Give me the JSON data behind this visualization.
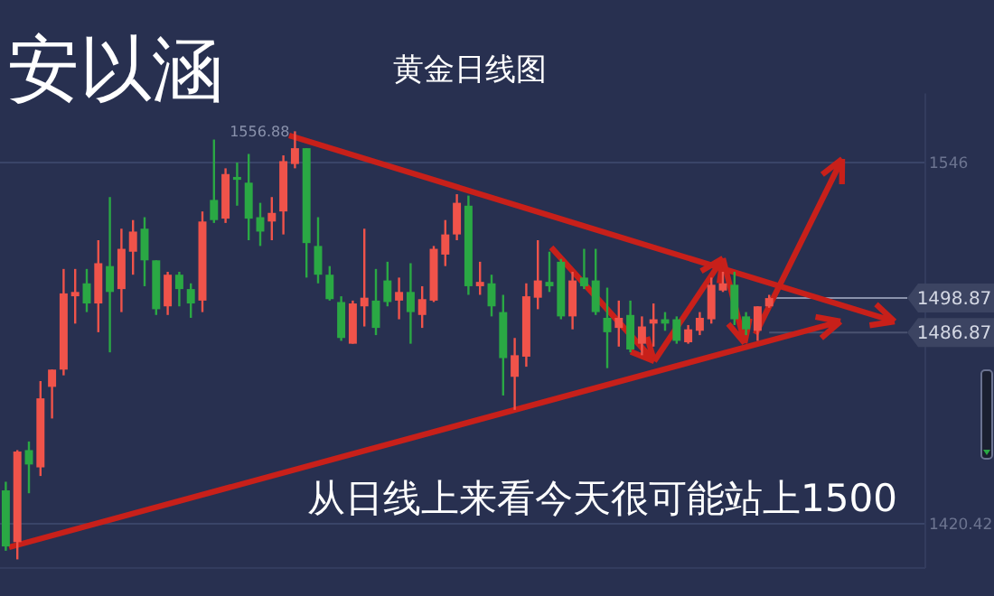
{
  "chart_data": {
    "type": "candlestick",
    "title": "黄金日线图",
    "annotations": [
      "安以涵",
      "从日线上来看今天很可能站上1500",
      "1556.88"
    ],
    "categories": [
      null,
      null,
      null,
      null,
      null,
      null,
      null,
      null,
      null,
      null,
      null,
      null,
      null,
      null,
      null,
      null,
      null,
      null,
      null,
      null,
      null,
      null,
      null,
      null,
      null,
      null,
      null,
      null,
      null,
      null,
      null,
      null,
      null,
      null,
      null,
      null,
      null,
      null,
      null,
      null,
      null,
      null,
      null,
      null,
      null,
      null,
      null,
      null,
      null,
      null,
      null,
      null,
      null,
      null,
      null,
      null,
      null,
      null,
      null,
      null,
      null,
      null,
      null,
      null,
      null,
      null,
      null,
      null,
      null,
      null,
      null,
      null,
      null,
      null,
      null,
      null,
      null,
      null,
      null,
      null
    ],
    "ohlc": [
      [
        1432,
        1435,
        1411,
        1412.5
      ],
      [
        1414,
        1446,
        1408,
        1445.5
      ],
      [
        1446,
        1449,
        1431,
        1441
      ],
      [
        1440,
        1470,
        1437,
        1464
      ],
      [
        1468,
        1474,
        1457,
        1474
      ],
      [
        1474,
        1509,
        1472,
        1500.5
      ],
      [
        1499.5,
        1509,
        1490,
        1501
      ],
      [
        1504,
        1509,
        1494,
        1497
      ],
      [
        1497,
        1519,
        1487,
        1511
      ],
      [
        1510,
        1534,
        1480,
        1501
      ],
      [
        1502,
        1523,
        1494,
        1516
      ],
      [
        1515,
        1526,
        1507,
        1522
      ],
      [
        1523,
        1527,
        1503,
        1512
      ],
      [
        1512,
        1512,
        1493,
        1495
      ],
      [
        1496,
        1508,
        1493,
        1507
      ],
      [
        1507,
        1508,
        1496,
        1502
      ],
      [
        1502,
        1504,
        1492,
        1497
      ],
      [
        1498,
        1529,
        1494,
        1525.5
      ],
      [
        1533,
        1554,
        1525,
        1526
      ],
      [
        1526.5,
        1544,
        1525,
        1542
      ],
      [
        1541,
        1546,
        1531,
        1540
      ],
      [
        1539,
        1549,
        1519,
        1526.5
      ],
      [
        1527,
        1532,
        1517,
        1522
      ],
      [
        1525.5,
        1534,
        1519,
        1528.5
      ],
      [
        1529,
        1548.5,
        1521,
        1546.5
      ],
      [
        1545.5,
        1556.88,
        1544,
        1551
      ],
      [
        1551,
        1551,
        1506,
        1518
      ],
      [
        1517,
        1527,
        1504,
        1507
      ],
      [
        1507,
        1510,
        1498,
        1498.5
      ],
      [
        1497.5,
        1499.5,
        1484,
        1485
      ],
      [
        1483,
        1498,
        1483,
        1497
      ],
      [
        1496,
        1523,
        1489,
        1499
      ],
      [
        1498,
        1509,
        1486,
        1488.5
      ],
      [
        1505,
        1511.5,
        1496,
        1497.5
      ],
      [
        1498,
        1506,
        1491.5,
        1501
      ],
      [
        1501,
        1511,
        1483,
        1494
      ],
      [
        1493,
        1503,
        1488.5,
        1498.5
      ],
      [
        1498,
        1517,
        1497.5,
        1516
      ],
      [
        1514,
        1526,
        1510,
        1521
      ],
      [
        1521,
        1535,
        1519,
        1532
      ],
      [
        1531,
        1534.5,
        1500,
        1503
      ],
      [
        1503,
        1511.5,
        1500,
        1504.5
      ],
      [
        1504,
        1507,
        1492.5,
        1496
      ],
      [
        1494,
        1500,
        1465,
        1478
      ],
      [
        1471.5,
        1485,
        1460,
        1479
      ],
      [
        1478.5,
        1504,
        1475,
        1499.5
      ],
      [
        1499,
        1519,
        1495,
        1505
      ],
      [
        1504.5,
        1515,
        1501,
        1503
      ],
      [
        1511.5,
        1512.5,
        1491.5,
        1492.5
      ],
      [
        1492.5,
        1508,
        1488,
        1505
      ],
      [
        1506,
        1516,
        1502,
        1503
      ],
      [
        1505,
        1516,
        1493,
        1494
      ],
      [
        1492,
        1502.5,
        1474.5,
        1487
      ],
      [
        1488.5,
        1498,
        1482,
        1492
      ],
      [
        1493,
        1498,
        1480,
        1481
      ],
      [
        1483,
        1492.5,
        1479,
        1489
      ],
      [
        1490,
        1497,
        1482,
        1491.5
      ],
      [
        1491.5,
        1494,
        1487.5,
        1490
      ],
      [
        1491.5,
        1492.5,
        1483,
        1484
      ],
      [
        1483.5,
        1489.5,
        1483,
        1488
      ],
      [
        1487.5,
        1494,
        1486,
        1492
      ],
      [
        1491.5,
        1506,
        1490,
        1503.5
      ],
      [
        1501.5,
        1508,
        1501,
        1504
      ],
      [
        1503.5,
        1508,
        1489.5,
        1491.5
      ],
      [
        1492.5,
        1494,
        1486,
        1488
      ],
      [
        1487.5,
        1496,
        1484,
        1496
      ],
      [
        1496,
        1500,
        1495.5,
        1498.87
      ],
      null,
      null,
      null,
      null,
      null,
      null,
      null,
      null,
      null,
      null,
      null,
      null,
      null
    ],
    "ylim": [
      1405,
      1570
    ],
    "yticks": [
      1546,
      1420.42
    ],
    "grid": "y",
    "ref_lines": [
      {
        "axis": "y",
        "value": 1498.87,
        "label": "1498.87",
        "color": "#8a92ac"
      },
      {
        "axis": "y",
        "value": 1486.87,
        "label": "1486.87",
        "color": "#4a5270"
      }
    ]
  }
}
